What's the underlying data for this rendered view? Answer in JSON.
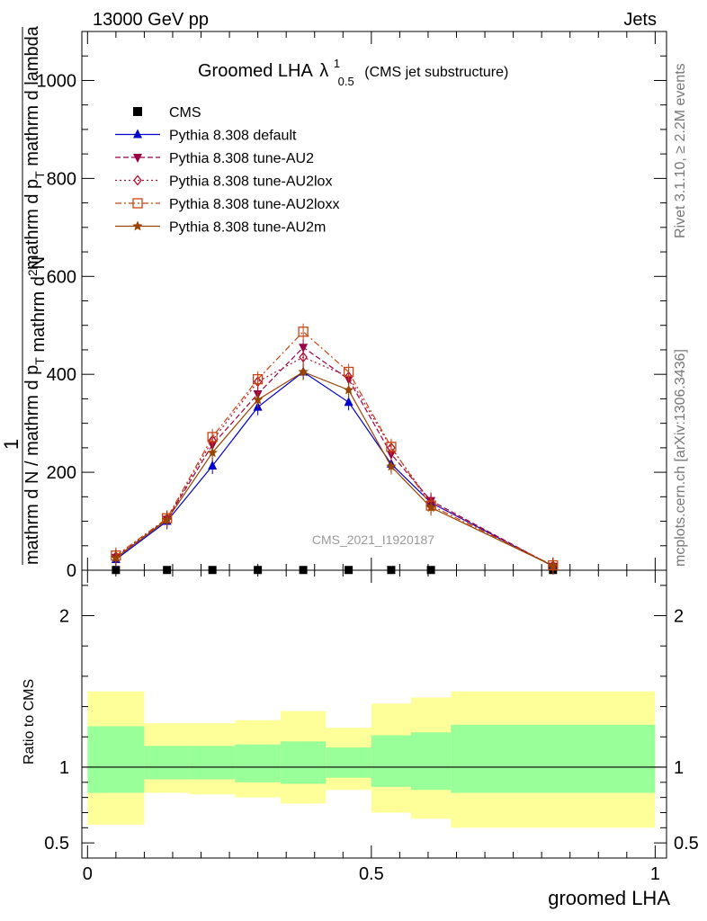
{
  "header": {
    "left": "13000 GeV pp",
    "right": "Jets"
  },
  "side_labels": {
    "rivet": "Rivet 3.1.10, ≥ 2.2M events",
    "mcplots": "mcplots.cern.ch [arXiv:1306.3436]"
  },
  "watermark": "CMS_2021_I1920187",
  "chart_data": [
    {
      "type": "line",
      "title": {
        "main": "Groomed LHA",
        "lambda": "λ",
        "sup": "1",
        "sub": "0.5",
        "suffix": "(CMS jet substructure)"
      },
      "ylabel_lines": [
        "1",
        "mathrm d N / mathrm d p",
        "T",
        "mathrm d",
        "2",
        "N"
      ],
      "ylabel": "1 / mathrm d N / mathrm d p_T mathrm d^2 N / mathrm d p_T mathrm d lambda",
      "ylabel_parts": {
        "num": "1",
        "den": "mathrm d N / mathrm d p",
        "den_sub": "T",
        "num2_top": "mathrm d",
        "num2_sup": "2",
        "num2_end": "N",
        "den2": "mathrm d p",
        "den2_sub": "T",
        "den2_end": "mathrm d lambda"
      },
      "xlim": [
        -0.01,
        1.02
      ],
      "ylim": [
        0,
        1100
      ],
      "yticks": [
        0,
        200,
        400,
        600,
        800,
        1000
      ],
      "ytick_labels": [
        "0",
        "200",
        "400",
        "600",
        "800",
        "1000"
      ],
      "legend_position": "top-left",
      "x": [
        0.05,
        0.14,
        0.22,
        0.3,
        0.38,
        0.46,
        0.535,
        0.605,
        0.82
      ],
      "series": [
        {
          "name": "CMS",
          "color": "#000000",
          "marker": "square",
          "values": [
            0.5,
            0.5,
            0.5,
            0.5,
            0.5,
            0.5,
            0.5,
            0.5,
            0.5
          ]
        },
        {
          "name": "Pythia 8.308 default",
          "color": "#0000cc",
          "marker": "triangle-up",
          "dash": "solid",
          "values": [
            22,
            100,
            213,
            333,
            405,
            343,
            217,
            138,
            8
          ]
        },
        {
          "name": "Pythia 8.308 tune-AU2",
          "color": "#990044",
          "marker": "triangle-down",
          "dash": "dashed",
          "values": [
            26,
            104,
            256,
            360,
            455,
            390,
            237,
            142,
            8
          ]
        },
        {
          "name": "Pythia 8.308 tune-AU2lox",
          "color": "#aa1133",
          "marker": "diamond-open",
          "dash": "dotted",
          "values": [
            28,
            105,
            265,
            385,
            435,
            395,
            250,
            138,
            9
          ]
        },
        {
          "name": "Pythia 8.308 tune-AU2loxx",
          "color": "#cc4411",
          "marker": "square-open",
          "dash": "dashdot",
          "values": [
            30,
            106,
            272,
            390,
            487,
            405,
            252,
            132,
            10
          ]
        },
        {
          "name": "Pythia 8.308 tune-AU2m",
          "color": "#994400",
          "marker": "star",
          "dash": "solid",
          "values": [
            25,
            103,
            240,
            348,
            405,
            368,
            212,
            128,
            9
          ]
        }
      ]
    },
    {
      "type": "area",
      "ylabel": "Ratio to CMS",
      "xlabel": "groomed LHA",
      "xlim": [
        -0.01,
        1.02
      ],
      "ylim": [
        0.4,
        2.3
      ],
      "yticks": [
        0.5,
        1,
        2
      ],
      "ytick_labels": [
        "0.5",
        "1",
        "2"
      ],
      "xticks": [
        0,
        0.5,
        1
      ],
      "xtick_labels": [
        "0",
        "0.5",
        "1"
      ],
      "bins": [
        {
          "lo": 0.0,
          "hi": 0.1,
          "green": [
            0.83,
            1.27
          ],
          "yellow": [
            0.62,
            1.5
          ]
        },
        {
          "lo": 0.1,
          "hi": 0.18,
          "green": [
            0.92,
            1.14
          ],
          "yellow": [
            0.83,
            1.29
          ]
        },
        {
          "lo": 0.18,
          "hi": 0.26,
          "green": [
            0.92,
            1.14
          ],
          "yellow": [
            0.82,
            1.29
          ]
        },
        {
          "lo": 0.26,
          "hi": 0.34,
          "green": [
            0.9,
            1.15
          ],
          "yellow": [
            0.8,
            1.31
          ]
        },
        {
          "lo": 0.34,
          "hi": 0.42,
          "green": [
            0.89,
            1.17
          ],
          "yellow": [
            0.76,
            1.37
          ]
        },
        {
          "lo": 0.42,
          "hi": 0.5,
          "green": [
            0.93,
            1.13
          ],
          "yellow": [
            0.85,
            1.26
          ]
        },
        {
          "lo": 0.5,
          "hi": 0.57,
          "green": [
            0.87,
            1.21
          ],
          "yellow": [
            0.7,
            1.42
          ]
        },
        {
          "lo": 0.57,
          "hi": 0.64,
          "green": [
            0.85,
            1.23
          ],
          "yellow": [
            0.66,
            1.46
          ]
        },
        {
          "lo": 0.64,
          "hi": 1.0,
          "green": [
            0.83,
            1.28
          ],
          "yellow": [
            0.6,
            1.5
          ]
        }
      ],
      "colors": {
        "green": "#99ff99",
        "yellow": "#ffff99",
        "line": "#000000"
      }
    }
  ]
}
